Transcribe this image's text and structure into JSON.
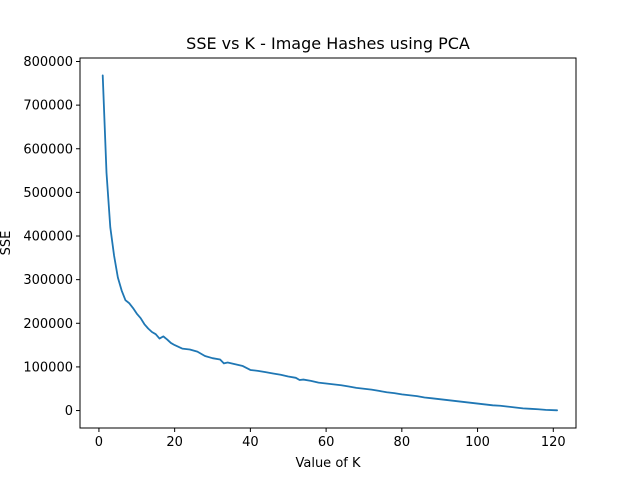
{
  "chart_data": {
    "type": "line",
    "title": "SSE vs K - Image Hashes using PCA",
    "xlabel": "Value of K",
    "ylabel": "SSE",
    "xlim": [
      -5,
      126
    ],
    "ylim": [
      -40000,
      808000
    ],
    "xticks": [
      0,
      20,
      40,
      60,
      80,
      100,
      120
    ],
    "yticks": [
      0,
      100000,
      200000,
      300000,
      400000,
      500000,
      600000,
      700000,
      800000
    ],
    "grid": false,
    "legend": "none",
    "line_color": "#1f77b4",
    "series": [
      {
        "x": [
          1,
          2,
          3,
          4,
          5,
          6,
          7,
          8,
          9,
          10,
          11,
          12,
          13,
          14,
          15,
          16,
          17,
          18,
          19,
          20,
          22,
          24,
          26,
          28,
          30,
          32,
          33,
          34,
          36,
          38,
          40,
          42,
          44,
          46,
          48,
          50,
          52,
          53,
          54,
          56,
          58,
          60,
          62,
          64,
          66,
          68,
          70,
          72,
          74,
          76,
          78,
          80,
          82,
          84,
          86,
          88,
          90,
          92,
          94,
          96,
          98,
          100,
          102,
          104,
          106,
          108,
          110,
          112,
          114,
          116,
          118,
          121
        ],
        "values": [
          768000,
          545000,
          420000,
          355000,
          305000,
          275000,
          253000,
          246000,
          235000,
          222000,
          212000,
          198000,
          188000,
          180000,
          175000,
          165000,
          170000,
          163000,
          155000,
          150000,
          142000,
          140000,
          135000,
          125000,
          120000,
          117000,
          108000,
          110000,
          106000,
          102000,
          93000,
          91000,
          88000,
          85000,
          82000,
          78000,
          75000,
          70000,
          71000,
          68000,
          64000,
          62000,
          60000,
          58000,
          55000,
          52000,
          50000,
          48000,
          45000,
          42000,
          40000,
          37000,
          35000,
          33000,
          30000,
          28000,
          26000,
          24000,
          22000,
          20000,
          18000,
          16000,
          14000,
          12000,
          11000,
          9000,
          7000,
          5000,
          4000,
          3000,
          1500,
          500
        ]
      }
    ]
  }
}
